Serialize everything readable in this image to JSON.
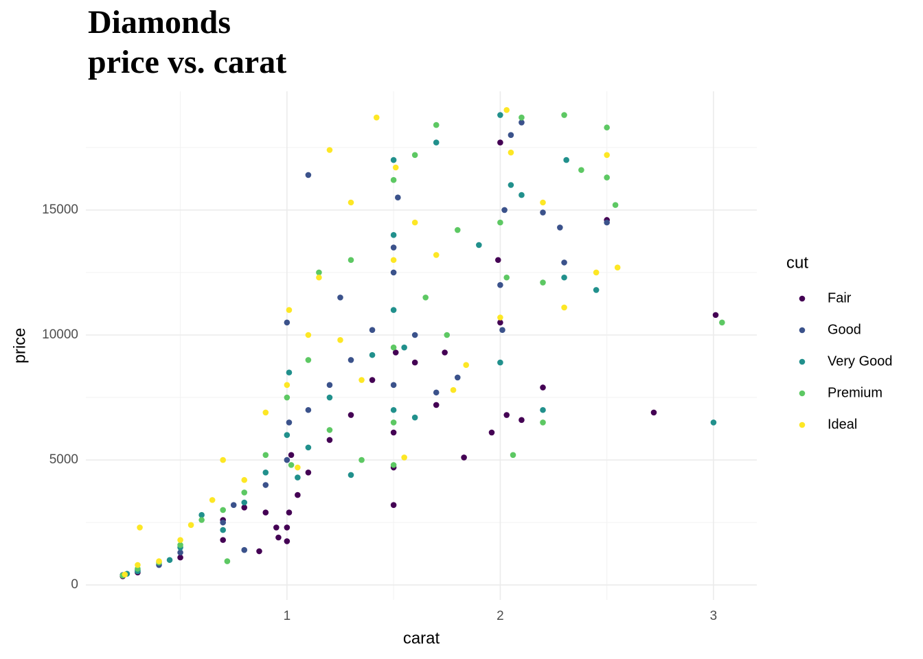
{
  "chart_data": {
    "type": "scatter",
    "title": "Diamonds",
    "subtitle": "price vs. carat",
    "x_label": "carat",
    "y_label": "price",
    "legend_title": "cut",
    "legend_position": "right",
    "grid": true,
    "xlim": [
      0.057,
      3.203
    ],
    "ylim": [
      -599,
      19748
    ],
    "xticks": [
      1,
      2,
      3
    ],
    "yticks": [
      0,
      5000,
      10000,
      15000
    ],
    "x_minor_grid": [
      0.5,
      1.5,
      2.5
    ],
    "y_minor_grid": [
      2500,
      7500,
      12500,
      17500
    ],
    "series": [
      {
        "name": "Fair",
        "color": "#440154",
        "x": [
          0.23,
          0.3,
          0.5,
          0.7,
          0.7,
          0.8,
          0.87,
          0.9,
          0.95,
          0.96,
          1.0,
          1.0,
          1.01,
          1.02,
          1.05,
          1.1,
          1.2,
          1.3,
          1.4,
          1.5,
          1.5,
          1.5,
          1.51,
          1.6,
          1.7,
          1.74,
          1.83,
          1.96,
          1.99,
          2.0,
          2.0,
          2.03,
          2.1,
          2.2,
          2.5,
          2.72,
          3.01
        ],
        "values": [
          350,
          500,
          1100,
          1800,
          2600,
          3100,
          1350,
          2900,
          2300,
          1900,
          1750,
          2300,
          2900,
          5200,
          3600,
          4500,
          5800,
          6800,
          8200,
          3200,
          4700,
          6100,
          9300,
          8900,
          7200,
          9300,
          5100,
          6100,
          13000,
          17700,
          10500,
          6800,
          6600,
          7900,
          14600,
          6900,
          10800
        ]
      },
      {
        "name": "Good",
        "color": "#3b528b",
        "x": [
          0.23,
          0.3,
          0.4,
          0.5,
          0.7,
          0.75,
          0.8,
          0.9,
          1.0,
          1.0,
          1.01,
          1.1,
          1.1,
          1.2,
          1.25,
          1.3,
          1.4,
          1.5,
          1.5,
          1.5,
          1.52,
          1.6,
          1.7,
          1.8,
          2.0,
          2.01,
          2.02,
          2.05,
          2.1,
          2.2,
          2.28,
          2.3,
          2.5
        ],
        "values": [
          400,
          600,
          800,
          1300,
          2500,
          3200,
          1400,
          4000,
          5000,
          10500,
          6500,
          7000,
          16400,
          8000,
          11500,
          9000,
          10200,
          8000,
          12500,
          13500,
          15500,
          10000,
          7700,
          8300,
          12000,
          10200,
          15000,
          18000,
          18500,
          14900,
          14300,
          12900,
          14500
        ]
      },
      {
        "name": "Very Good",
        "color": "#21908c",
        "x": [
          0.25,
          0.3,
          0.45,
          0.5,
          0.6,
          0.7,
          0.8,
          0.9,
          1.0,
          1.01,
          1.05,
          1.1,
          1.2,
          1.3,
          1.4,
          1.5,
          1.5,
          1.5,
          1.5,
          1.55,
          1.6,
          1.7,
          1.9,
          2.0,
          2.0,
          2.05,
          2.1,
          2.2,
          2.3,
          2.31,
          2.45,
          3.0
        ],
        "values": [
          450,
          550,
          1000,
          1500,
          2800,
          2200,
          3300,
          4500,
          6000,
          8500,
          4300,
          5500,
          7500,
          4400,
          9200,
          7000,
          11000,
          14000,
          17000,
          9500,
          6700,
          17700,
          13600,
          18800,
          8900,
          16000,
          15600,
          7000,
          12300,
          17000,
          11800,
          6500
        ]
      },
      {
        "name": "Premium",
        "color": "#5dc863",
        "x": [
          0.23,
          0.3,
          0.4,
          0.5,
          0.6,
          0.7,
          0.72,
          0.8,
          0.9,
          1.0,
          1.02,
          1.1,
          1.15,
          1.2,
          1.3,
          1.35,
          1.5,
          1.5,
          1.5,
          1.5,
          1.6,
          1.65,
          1.7,
          1.75,
          1.8,
          2.0,
          2.03,
          2.06,
          2.1,
          2.2,
          2.2,
          2.3,
          2.38,
          2.5,
          2.5,
          2.54,
          3.04
        ],
        "values": [
          380,
          650,
          900,
          1600,
          2600,
          3000,
          950,
          3700,
          5200,
          7500,
          4800,
          9000,
          12500,
          6200,
          13000,
          5000,
          16200,
          6500,
          9500,
          4800,
          17200,
          11500,
          18400,
          10000,
          14200,
          14500,
          12300,
          5200,
          18700,
          12100,
          6500,
          18800,
          16600,
          18300,
          16300,
          15200,
          10500
        ]
      },
      {
        "name": "Ideal",
        "color": "#fde725",
        "x": [
          0.24,
          0.3,
          0.31,
          0.4,
          0.5,
          0.55,
          0.65,
          0.7,
          0.8,
          0.9,
          1.0,
          1.01,
          1.05,
          1.1,
          1.15,
          1.2,
          1.25,
          1.3,
          1.35,
          1.42,
          1.5,
          1.51,
          1.55,
          1.6,
          1.7,
          1.78,
          1.84,
          2.0,
          2.03,
          2.05,
          2.2,
          2.3,
          2.45,
          2.5,
          2.55
        ],
        "values": [
          420,
          800,
          2300,
          950,
          1800,
          2400,
          3400,
          5000,
          4200,
          6900,
          8000,
          11000,
          4700,
          10000,
          12300,
          17400,
          9800,
          15300,
          8200,
          18700,
          13000,
          16700,
          5100,
          14500,
          13200,
          7800,
          8800,
          10700,
          19000,
          17300,
          15300,
          11100,
          12500,
          17200,
          12700
        ]
      }
    ]
  }
}
